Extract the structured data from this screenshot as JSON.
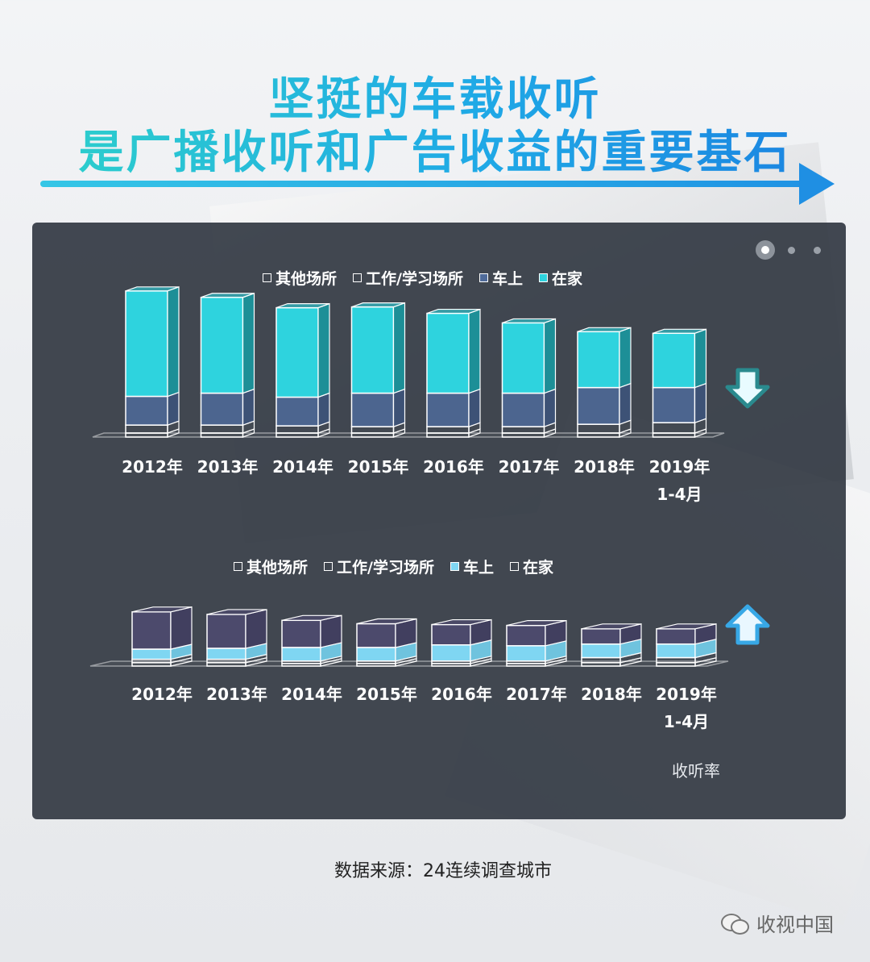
{
  "title": {
    "line1": "坚挺的车载收听",
    "line2": "是广播收听和广告收益的重要基石"
  },
  "pager": {
    "total": 3,
    "active": 0
  },
  "colors": {
    "home": "#2ed3de",
    "car_top": "#4f6b9a",
    "car_bottom": "#7fd6f2",
    "outline": "#ffffff",
    "down_arrow": "#2a8a8e",
    "up_arrow": "#38a8e6"
  },
  "chart_data": [
    {
      "type": "bar",
      "stacked": true,
      "categories": [
        "2012年",
        "2013年",
        "2014年",
        "2015年",
        "2016年",
        "2017年",
        "2018年",
        "2019年\n1-4月"
      ],
      "series": [
        {
          "name": "其他场所",
          "values": [
            2.5,
            2.5,
            2.5,
            2.5,
            2.5,
            2.5,
            2.5,
            2.5
          ]
        },
        {
          "name": "工作/学习场所",
          "values": [
            5,
            5,
            4.5,
            4,
            4,
            4,
            5.5,
            6.5
          ]
        },
        {
          "name": "车上",
          "values": [
            18,
            20,
            18,
            21,
            21,
            21,
            23,
            22
          ]
        },
        {
          "name": "在家",
          "values": [
            66,
            60,
            56,
            54,
            50,
            44,
            35,
            34
          ]
        }
      ],
      "legend": "top",
      "trend_icon": "down-arrow-icon"
    },
    {
      "type": "bar",
      "stacked": true,
      "categories": [
        "2012年",
        "2013年",
        "2014年",
        "2015年",
        "2016年",
        "2017年",
        "2018年",
        "2019年\n1-4月"
      ],
      "series": [
        {
          "name": "其他场所",
          "values": [
            2,
            2,
            1.5,
            1.5,
            1.5,
            1.5,
            2,
            2
          ]
        },
        {
          "name": "工作/学习场所",
          "values": [
            2,
            2,
            1.5,
            1.5,
            1.5,
            1.5,
            3,
            3
          ]
        },
        {
          "name": "车上",
          "values": [
            6,
            6.5,
            8,
            8,
            9.5,
            9,
            8,
            8
          ]
        },
        {
          "name": "在家",
          "values": [
            22,
            20,
            16,
            14,
            12,
            12,
            9,
            9
          ]
        }
      ],
      "legend": "top",
      "ylabel": "收听率",
      "trend_icon": "up-arrow-icon"
    }
  ],
  "note": "收听率",
  "source": "数据来源：24连续调查城市",
  "watermark": "收视中国"
}
